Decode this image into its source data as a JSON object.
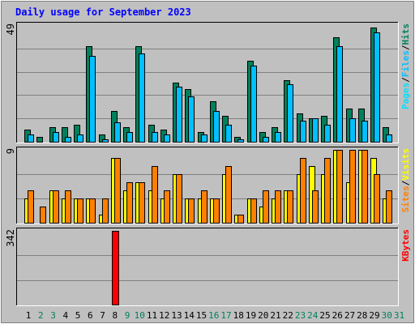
{
  "title": "Daily usage for September 2023",
  "colors": {
    "title": "#0000ff",
    "frame_bg": "#c0c0c0",
    "plot_bg": "#c0c0c0",
    "gridline": "#808080",
    "hits": "#00805c",
    "files": "#00c0ff",
    "pages": "#00e0ff",
    "visits": "#ffff00",
    "sites": "#ff8000",
    "kbytes": "#ff0000",
    "weekday_label": "#000000",
    "weekend_label": "#00805c"
  },
  "chart_data": [
    {
      "type": "bar",
      "title": "Daily usage for September 2023",
      "categories": [
        "1",
        "2",
        "3",
        "4",
        "5",
        "6",
        "7",
        "8",
        "9",
        "10",
        "11",
        "12",
        "13",
        "14",
        "15",
        "16",
        "17",
        "18",
        "19",
        "20",
        "21",
        "22",
        "23",
        "24",
        "25",
        "26",
        "27",
        "28",
        "29",
        "30",
        "31"
      ],
      "weekend_days": [
        "2",
        "3",
        "9",
        "10",
        "16",
        "17",
        "23",
        "24",
        "30",
        "31"
      ],
      "ymax_label": "49",
      "ylim": [
        0,
        49
      ],
      "legend_labels": [
        "Pages",
        "Files",
        "Hits"
      ],
      "legend_separator": "/",
      "series": [
        {
          "name": "Hits",
          "values": [
            5,
            2,
            6,
            6,
            7,
            40,
            3,
            13,
            6,
            40,
            7,
            5,
            25,
            22,
            4,
            17,
            11,
            2,
            34,
            4,
            6,
            26,
            12,
            10,
            11,
            44,
            14,
            14,
            48,
            6,
            0
          ]
        },
        {
          "name": "Files",
          "values": [
            3,
            0,
            4,
            2,
            3,
            36,
            1,
            8,
            4,
            37,
            4,
            3,
            23,
            19,
            3,
            13,
            7,
            1,
            32,
            2,
            4,
            24,
            9,
            10,
            7,
            40,
            10,
            9,
            46,
            3,
            0
          ]
        }
      ]
    },
    {
      "type": "bar",
      "categories": [
        "1",
        "2",
        "3",
        "4",
        "5",
        "6",
        "7",
        "8",
        "9",
        "10",
        "11",
        "12",
        "13",
        "14",
        "15",
        "16",
        "17",
        "18",
        "19",
        "20",
        "21",
        "22",
        "23",
        "24",
        "25",
        "26",
        "27",
        "28",
        "29",
        "30",
        "31"
      ],
      "ymax_label": "9",
      "ylim": [
        0,
        9
      ],
      "legend_labels": [
        "Sites",
        "Visits"
      ],
      "legend_separator": "/",
      "series": [
        {
          "name": "Visits",
          "values": [
            3,
            0,
            4,
            3,
            3,
            3,
            1,
            8,
            4,
            5,
            4,
            3,
            6,
            3,
            3,
            3,
            6,
            1,
            3,
            2,
            3,
            4,
            6,
            7,
            6,
            9,
            5,
            9,
            8,
            3,
            0
          ]
        },
        {
          "name": "Sites",
          "values": [
            4,
            2,
            4,
            4,
            3,
            3,
            3,
            8,
            5,
            5,
            7,
            4,
            6,
            3,
            4,
            3,
            7,
            1,
            3,
            4,
            4,
            4,
            8,
            4,
            8,
            9,
            9,
            9,
            6,
            4,
            0
          ]
        }
      ]
    },
    {
      "type": "bar",
      "categories": [
        "1",
        "2",
        "3",
        "4",
        "5",
        "6",
        "7",
        "8",
        "9",
        "10",
        "11",
        "12",
        "13",
        "14",
        "15",
        "16",
        "17",
        "18",
        "19",
        "20",
        "21",
        "22",
        "23",
        "24",
        "25",
        "26",
        "27",
        "28",
        "29",
        "30",
        "31"
      ],
      "ymax_label": "342",
      "ylim": [
        0,
        342
      ],
      "legend_labels": [
        "KBytes"
      ],
      "series": [
        {
          "name": "KBytes",
          "values": [
            0,
            0,
            0,
            0,
            0,
            0,
            0,
            342,
            0,
            0,
            0,
            0,
            0,
            0,
            0,
            0,
            0,
            0,
            0,
            0,
            0,
            0,
            0,
            0,
            0,
            0,
            0,
            0,
            0,
            0,
            0
          ]
        }
      ]
    }
  ]
}
